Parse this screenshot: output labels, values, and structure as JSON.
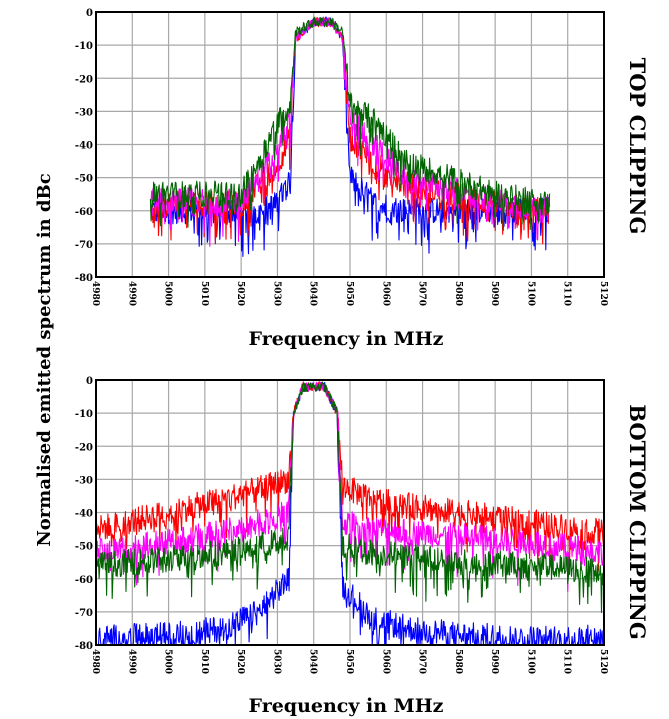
{
  "chart_data": [
    {
      "type": "line",
      "panel_label": "TOP CLIPPING",
      "xlabel": "Frequency in MHz",
      "ylabel": "Normalised emitted spectrum in dBc",
      "x_ticks": [
        "4980",
        "4990",
        "5000",
        "5010",
        "5020",
        "5030",
        "5040",
        "5050",
        "5060",
        "5070",
        "5080",
        "5090",
        "5100",
        "5110",
        "5120"
      ],
      "y_ticks": [
        "0",
        "-10",
        "-20",
        "-30",
        "-40",
        "-50",
        "-60",
        "-70",
        "-80"
      ],
      "xlim": [
        4980,
        5120
      ],
      "ylim": [
        -80,
        0
      ],
      "grid": true,
      "series_colors": [
        "#0000ff",
        "#ff0000",
        "#ff00ff",
        "#006400"
      ],
      "series": [
        {
          "x": [
            4995,
            5020,
            5025,
            5030,
            5033.5,
            5035,
            5040,
            5045,
            5048,
            5050,
            5057,
            5065,
            5090,
            5105
          ],
          "values": [
            -60,
            -60,
            -60,
            -58,
            -50,
            -8,
            -3,
            -3,
            -8,
            -50,
            -58,
            -60,
            -60,
            -60
          ]
        },
        {
          "x": [
            4995,
            5020,
            5025,
            5030,
            5033.5,
            5035,
            5040,
            5045,
            5048,
            5050,
            5057,
            5065,
            5090,
            5105
          ],
          "values": [
            -58,
            -58,
            -52,
            -46,
            -38,
            -8,
            -3,
            -3,
            -8,
            -38,
            -46,
            -52,
            -58,
            -60
          ]
        },
        {
          "x": [
            4995,
            5020,
            5025,
            5030,
            5033.5,
            5035,
            5040,
            5045,
            5048,
            5050,
            5057,
            5065,
            5090,
            5105
          ],
          "values": [
            -57,
            -57,
            -50,
            -40,
            -33,
            -8,
            -3,
            -3,
            -8,
            -33,
            -40,
            -50,
            -57,
            -60
          ]
        },
        {
          "x": [
            4995,
            5020,
            5025,
            5030,
            5033.5,
            5035,
            5040,
            5045,
            5048,
            5050,
            5057,
            5065,
            5090,
            5105
          ],
          "values": [
            -55,
            -55,
            -45,
            -33,
            -28,
            -6,
            -3,
            -3,
            -6,
            -28,
            -33,
            -45,
            -55,
            -58
          ]
        }
      ]
    },
    {
      "type": "line",
      "panel_label": "BOTTOM CLIPPING",
      "xlabel": "Frequency in MHz",
      "x_ticks": [
        "4980",
        "4990",
        "5000",
        "5010",
        "5020",
        "5030",
        "5040",
        "5050",
        "5060",
        "5070",
        "5080",
        "5090",
        "5100",
        "5110",
        "5120"
      ],
      "y_ticks": [
        "0",
        "-10",
        "-20",
        "-30",
        "-40",
        "-50",
        "-60",
        "-70",
        "-80"
      ],
      "xlim": [
        4980,
        5120
      ],
      "ylim": [
        -80,
        0
      ],
      "grid": true,
      "series_colors": [
        "#0000ff",
        "#ff0000",
        "#ff00ff",
        "#006400"
      ],
      "series": [
        {
          "x": [
            4980,
            5000,
            5015,
            5025,
            5033,
            5034.5,
            5037,
            5043,
            5046.5,
            5048,
            5056,
            5066,
            5080,
            5100,
            5120
          ],
          "values": [
            -78,
            -77,
            -75,
            -70,
            -60,
            -10,
            -2,
            -2,
            -10,
            -62,
            -72,
            -75,
            -77,
            -78,
            -78
          ]
        },
        {
          "x": [
            4980,
            5000,
            5015,
            5025,
            5033,
            5034.5,
            5037,
            5043,
            5046.5,
            5048,
            5056,
            5066,
            5080,
            5100,
            5120
          ],
          "values": [
            -45,
            -40,
            -36,
            -33,
            -30,
            -10,
            -2,
            -2,
            -10,
            -32,
            -36,
            -38,
            -40,
            -43,
            -46
          ]
        },
        {
          "x": [
            4980,
            5000,
            5015,
            5025,
            5033,
            5034.5,
            5037,
            5043,
            5046.5,
            5048,
            5056,
            5066,
            5080,
            5100,
            5120
          ],
          "values": [
            -52,
            -49,
            -46,
            -43,
            -40,
            -10,
            -2,
            -2,
            -10,
            -43,
            -45,
            -46,
            -47,
            -49,
            -52
          ]
        },
        {
          "x": [
            4980,
            5000,
            5015,
            5025,
            5033,
            5034.5,
            5037,
            5043,
            5046.5,
            5048,
            5056,
            5066,
            5080,
            5100,
            5120
          ],
          "values": [
            -56,
            -54,
            -52,
            -50,
            -48,
            -10,
            -2,
            -2,
            -10,
            -50,
            -52,
            -53,
            -55,
            -56,
            -58
          ]
        }
      ]
    }
  ]
}
